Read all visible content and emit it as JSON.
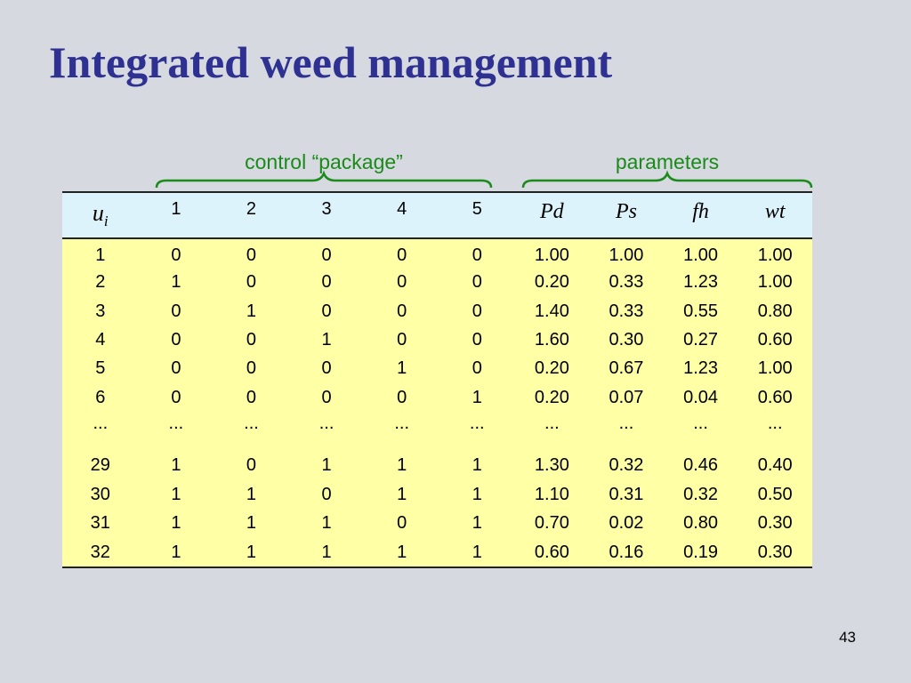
{
  "slide": {
    "title": "Integrated weed management",
    "page_number": "43"
  },
  "groups": {
    "control_label": "control “package”",
    "parameters_label": "parameters"
  },
  "table": {
    "header": {
      "index_symbol": "u",
      "index_subscript": "i",
      "package_columns": [
        "1",
        "2",
        "3",
        "4",
        "5"
      ],
      "parameter_columns": [
        "Pd",
        "Ps",
        "fh",
        "wt"
      ]
    },
    "rows": [
      [
        "1",
        "0",
        "0",
        "0",
        "0",
        "0",
        "1.00",
        "1.00",
        "1.00",
        "1.00"
      ],
      [
        "2",
        "1",
        "0",
        "0",
        "0",
        "0",
        "0.20",
        "0.33",
        "1.23",
        "1.00"
      ],
      [
        "3",
        "0",
        "1",
        "0",
        "0",
        "0",
        "1.40",
        "0.33",
        "0.55",
        "0.80"
      ],
      [
        "4",
        "0",
        "0",
        "1",
        "0",
        "0",
        "1.60",
        "0.30",
        "0.27",
        "0.60"
      ],
      [
        "5",
        "0",
        "0",
        "0",
        "1",
        "0",
        "0.20",
        "0.67",
        "1.23",
        "1.00"
      ],
      [
        "6",
        "0",
        "0",
        "0",
        "0",
        "1",
        "0.20",
        "0.07",
        "0.04",
        "0.60"
      ],
      [
        "...",
        "...",
        "...",
        "...",
        "...",
        "...",
        "...",
        "...",
        "...",
        "..."
      ],
      [
        "29",
        "1",
        "0",
        "1",
        "1",
        "1",
        "1.30",
        "0.32",
        "0.46",
        "0.40"
      ],
      [
        "30",
        "1",
        "1",
        "0",
        "1",
        "1",
        "1.10",
        "0.31",
        "0.32",
        "0.50"
      ],
      [
        "31",
        "1",
        "1",
        "1",
        "0",
        "1",
        "0.70",
        "0.02",
        "0.80",
        "0.30"
      ],
      [
        "32",
        "1",
        "1",
        "1",
        "1",
        "1",
        "0.60",
        "0.16",
        "0.19",
        "0.30"
      ]
    ]
  },
  "colors": {
    "background": "#d6d9df",
    "title": "#2e3192",
    "group_label": "#1a8a1a",
    "header_fill": "#ddf3fb",
    "body_fill": "#ffffa6"
  }
}
